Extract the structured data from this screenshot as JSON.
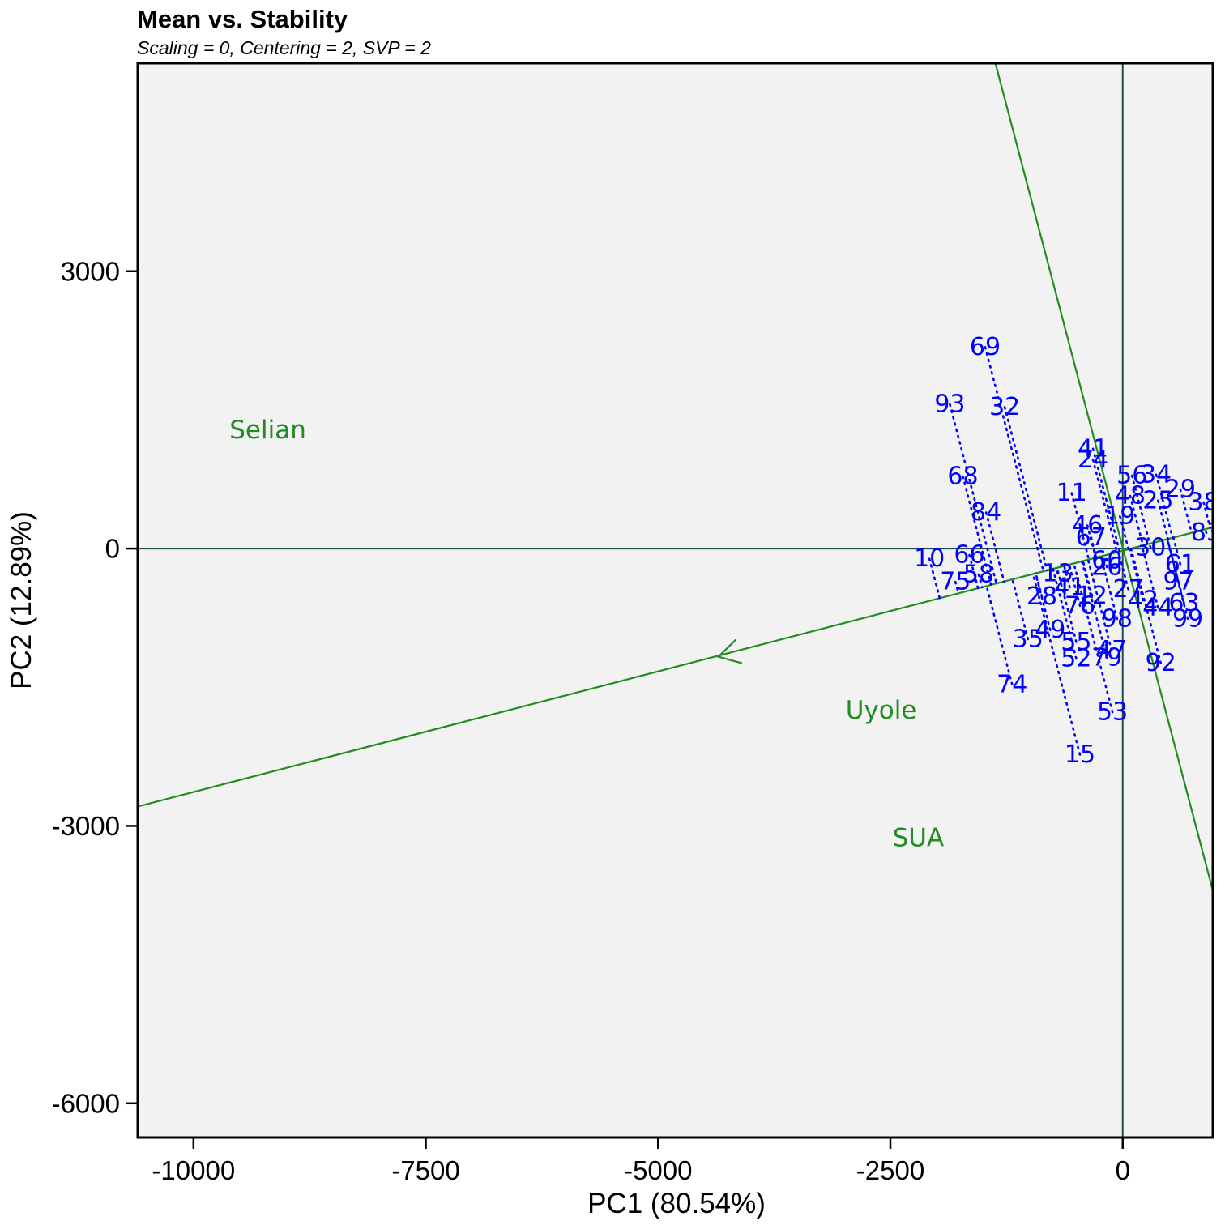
{
  "chart_data": {
    "type": "scatter",
    "title": "Mean vs. Stability",
    "subtitle": "Scaling = 0, Centering = 2, SVP = 2",
    "xlabel": "PC1 (80.54%)",
    "ylabel": "PC2 (12.89%)",
    "xlim": [
      -10600,
      970
    ],
    "ylim": [
      -6370,
      5250
    ],
    "xticks": [
      -10000,
      -7500,
      -5000,
      -2500,
      0
    ],
    "xtick_labels": [
      "-10000",
      "-7500",
      "-5000",
      "-2500",
      "0"
    ],
    "yticks": [
      -6000,
      -3000,
      0,
      3000
    ],
    "ytick_labels": [
      "-6000",
      "-3000",
      "0",
      "3000"
    ],
    "grid": false,
    "colors": {
      "panel_bg": "#f2f2f2",
      "genotype": "#0000ff",
      "environment": "#228b22",
      "aec_line": "#228b22",
      "reference_axes": "#1f4e4e",
      "projection": "#0000ff"
    },
    "aec_abscissa": {
      "through": [
        [
          -10600,
          -2790
        ],
        [
          970,
          230
        ]
      ],
      "arrow_at": [
        -4350,
        -1170
      ]
    },
    "aec_ordinate": {
      "through": [
        [
          -1370,
          5250
        ],
        [
          970,
          -3700
        ]
      ]
    },
    "environments": [
      {
        "name": "Selian",
        "x": -9200,
        "y": 1280
      },
      {
        "name": "Uyole",
        "x": -2600,
        "y": -1750
      },
      {
        "name": "SUA",
        "x": -2200,
        "y": -3130
      }
    ],
    "genotypes": [
      {
        "label": "69",
        "x": -1480,
        "y": 2180
      },
      {
        "label": "93",
        "x": -1860,
        "y": 1560
      },
      {
        "label": "32",
        "x": -1270,
        "y": 1530
      },
      {
        "label": "41",
        "x": -320,
        "y": 1080
      },
      {
        "label": "24",
        "x": -320,
        "y": 960
      },
      {
        "label": "68",
        "x": -1720,
        "y": 780
      },
      {
        "label": "11",
        "x": -550,
        "y": 600
      },
      {
        "label": "84",
        "x": -1470,
        "y": 390
      },
      {
        "label": "10",
        "x": -2080,
        "y": -110
      },
      {
        "label": "66",
        "x": -1650,
        "y": -70
      },
      {
        "label": "75",
        "x": -1800,
        "y": -360
      },
      {
        "label": "58",
        "x": -1550,
        "y": -280
      },
      {
        "label": "13",
        "x": -700,
        "y": -270
      },
      {
        "label": "28",
        "x": -870,
        "y": -520
      },
      {
        "label": "41",
        "x": -570,
        "y": -420
      },
      {
        "label": "12",
        "x": -330,
        "y": -510
      },
      {
        "label": "76",
        "x": -460,
        "y": -620
      },
      {
        "label": "98",
        "x": -60,
        "y": -760
      },
      {
        "label": "49",
        "x": -780,
        "y": -880
      },
      {
        "label": "35",
        "x": -1020,
        "y": -980
      },
      {
        "label": "55",
        "x": -500,
        "y": -1010
      },
      {
        "label": "47",
        "x": -120,
        "y": -1100
      },
      {
        "label": "79",
        "x": -170,
        "y": -1180
      },
      {
        "label": "52",
        "x": -500,
        "y": -1190
      },
      {
        "label": "74",
        "x": -1190,
        "y": -1470
      },
      {
        "label": "53",
        "x": -110,
        "y": -1770
      },
      {
        "label": "15",
        "x": -460,
        "y": -2230
      },
      {
        "label": "92",
        "x": 410,
        "y": -1240
      },
      {
        "label": "99",
        "x": 700,
        "y": -760
      },
      {
        "label": "63",
        "x": 660,
        "y": -590
      },
      {
        "label": "44",
        "x": 380,
        "y": -640
      },
      {
        "label": "42",
        "x": 220,
        "y": -560
      },
      {
        "label": "27",
        "x": 60,
        "y": -440
      },
      {
        "label": "26",
        "x": -170,
        "y": -200
      },
      {
        "label": "60",
        "x": -170,
        "y": -130
      },
      {
        "label": "46",
        "x": -380,
        "y": 250
      },
      {
        "label": "67",
        "x": -340,
        "y": 120
      },
      {
        "label": "19",
        "x": -30,
        "y": 350
      },
      {
        "label": "56",
        "x": 100,
        "y": 790
      },
      {
        "label": "34",
        "x": 360,
        "y": 800
      },
      {
        "label": "29",
        "x": 620,
        "y": 640
      },
      {
        "label": "48",
        "x": 80,
        "y": 570
      },
      {
        "label": "25",
        "x": 380,
        "y": 520
      },
      {
        "label": "38",
        "x": 870,
        "y": 500
      },
      {
        "label": "83",
        "x": 900,
        "y": 170
      },
      {
        "label": "61",
        "x": 620,
        "y": -170
      },
      {
        "label": "97",
        "x": 600,
        "y": -360
      },
      {
        "label": "30",
        "x": 300,
        "y": 10
      }
    ]
  }
}
